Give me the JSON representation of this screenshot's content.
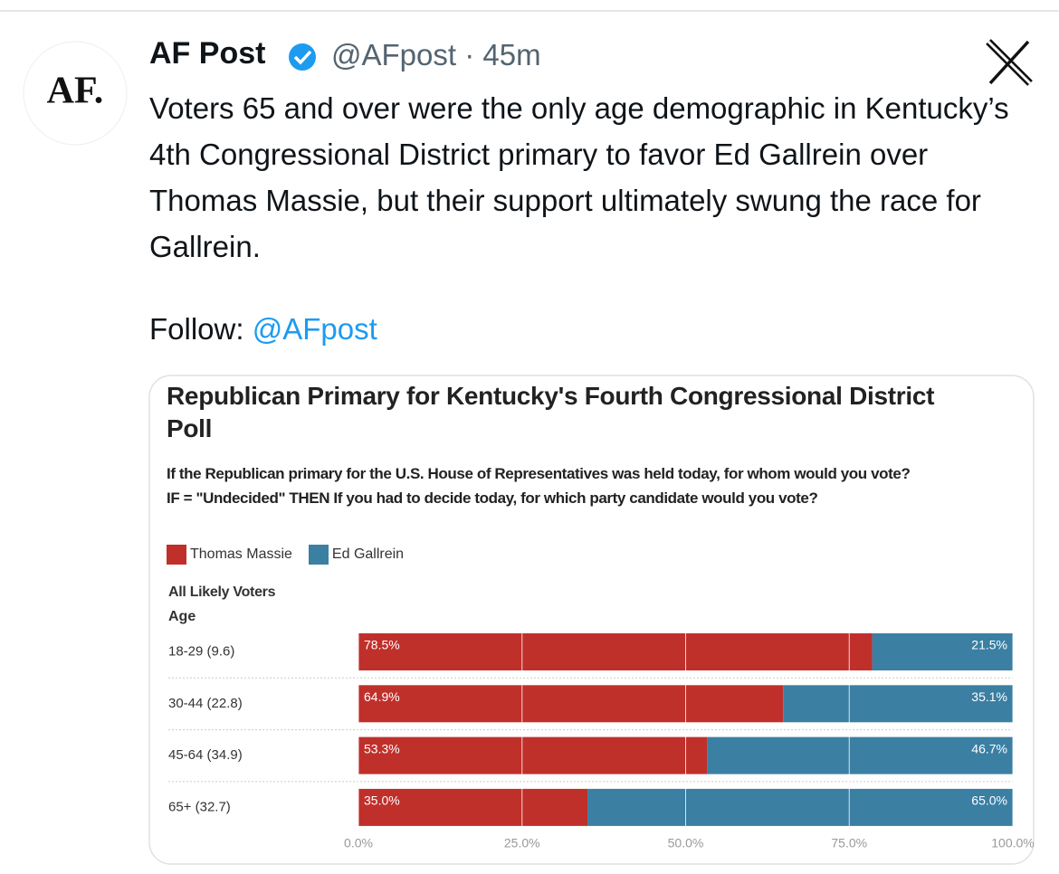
{
  "tweet": {
    "avatar": "AF.",
    "author": "AF Post",
    "handle": "@AFpost",
    "time": "45m",
    "text": "Voters 65 and over were the only age demographic in Kentucky’s 4th Congressional District primary to favor Ed Gallrein over Thomas Massie, but their support ultimately swung the race for Gallrein.",
    "follow_label": "Follow:",
    "follow_handle": "@AFpost"
  },
  "chart_data": {
    "type": "bar",
    "orientation": "horizontal",
    "stacked": true,
    "title": "Republican Primary for Kentucky's Fourth Congressional District Poll",
    "subtitle": [
      "If the Republican primary for the U.S. House of Representatives was held today, for whom would you vote?",
      "IF = \"Undecided\" THEN If you had to decide today, for which party candidate would you vote?"
    ],
    "group_label": "All Likely Voters",
    "category_label": "Age",
    "categories": [
      "18-29 (9.6)",
      "30-44 (22.8)",
      "45-64 (34.9)",
      "65+ (32.7)"
    ],
    "series": [
      {
        "name": "Thomas Massie",
        "color": "#c0302b",
        "values": [
          78.5,
          64.9,
          53.3,
          35.0
        ],
        "value_labels": [
          "78.5%",
          "64.9%",
          "53.3%",
          "35.0%"
        ]
      },
      {
        "name": "Ed Gallrein",
        "color": "#3b7fa3",
        "values": [
          21.5,
          35.1,
          46.7,
          65.0
        ],
        "value_labels": [
          "21.5%",
          "35.1%",
          "46.7%",
          "65.0%"
        ]
      }
    ],
    "xlim": [
      0,
      100
    ],
    "xticks": [
      {
        "value": 0,
        "label": "0.0%"
      },
      {
        "value": 25,
        "label": "25.0%"
      },
      {
        "value": 50,
        "label": "50.0%"
      },
      {
        "value": 75,
        "label": "75.0%"
      },
      {
        "value": 100,
        "label": "100.0%"
      }
    ],
    "grid": true
  }
}
